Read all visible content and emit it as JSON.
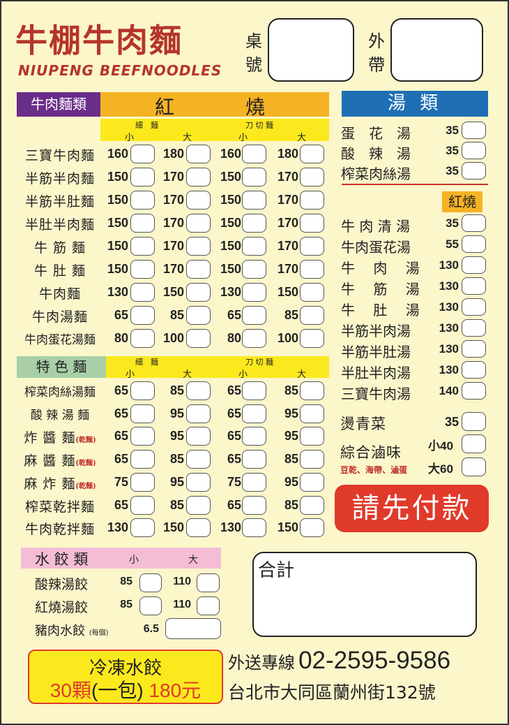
{
  "header": {
    "title": "牛棚牛肉麵",
    "subtitle": "NIUPENG BEEFNOODLES",
    "table_label": [
      "桌",
      "號"
    ],
    "takeout_label": [
      "外",
      "帶"
    ]
  },
  "colors": {
    "title_red": "#b5352a",
    "purple": "#6a2d8a",
    "orange": "#f5b324",
    "yellow": "#fbe91d",
    "green": "#a8cfa8",
    "blue": "#1f6fb5",
    "pink": "#f5bcd6",
    "pay_red": "#e03a2a"
  },
  "beef": {
    "label": "牛肉麵類",
    "hong": "紅",
    "shao": "燒",
    "thin": "細　麵",
    "knife": "刀 切 麵",
    "small": "小",
    "large": "大",
    "rows": [
      {
        "name": "三寶牛肉麵",
        "p": [
          "160",
          "180",
          "160",
          "180"
        ]
      },
      {
        "name": "半筋半肉麵",
        "p": [
          "150",
          "170",
          "150",
          "170"
        ]
      },
      {
        "name": "半筋半肚麵",
        "p": [
          "150",
          "170",
          "150",
          "170"
        ]
      },
      {
        "name": "半肚半肉麵",
        "p": [
          "150",
          "170",
          "150",
          "170"
        ]
      },
      {
        "name": "牛 筋 麵",
        "p": [
          "150",
          "170",
          "150",
          "170"
        ]
      },
      {
        "name": "牛 肚 麵",
        "p": [
          "150",
          "170",
          "150",
          "170"
        ]
      },
      {
        "name": "牛肉麵",
        "p": [
          "130",
          "150",
          "130",
          "150"
        ]
      },
      {
        "name": "牛肉湯麵",
        "p": [
          "65",
          "85",
          "65",
          "85"
        ]
      },
      {
        "name": "牛肉蛋花湯麵",
        "p": [
          "80",
          "100",
          "80",
          "100"
        ]
      }
    ]
  },
  "special": {
    "label": "特 色 麵",
    "thin": "細　麵",
    "knife": "刀 切 麵",
    "small": "小",
    "large": "大",
    "rows": [
      {
        "name": "榨菜肉絲湯麵",
        "note": "",
        "p": [
          "65",
          "85",
          "65",
          "85"
        ]
      },
      {
        "name": "酸 辣 湯 麵",
        "note": "",
        "p": [
          "65",
          "95",
          "65",
          "95"
        ]
      },
      {
        "name": "炸 醬 麵",
        "note": "(乾麵)",
        "p": [
          "65",
          "95",
          "65",
          "95"
        ]
      },
      {
        "name": "麻 醬 麵",
        "note": "(乾麵)",
        "p": [
          "65",
          "85",
          "65",
          "85"
        ]
      },
      {
        "name": "麻 炸 麵",
        "note": "(乾麵)",
        "p": [
          "75",
          "95",
          "75",
          "95"
        ]
      },
      {
        "name": "榨菜乾拌麵",
        "note": "",
        "p": [
          "65",
          "85",
          "65",
          "85"
        ]
      },
      {
        "name": "牛肉乾拌麵",
        "note": "",
        "p": [
          "130",
          "150",
          "130",
          "150"
        ]
      }
    ]
  },
  "soup": {
    "label": "湯 類",
    "rows": [
      {
        "name": "蛋　花　湯",
        "p": "35"
      },
      {
        "name": "酸　辣　湯",
        "p": "35"
      },
      {
        "name": "榨菜肉絲湯",
        "p": "35"
      }
    ],
    "braised_label": "紅燒",
    "braised": [
      {
        "name": "牛 肉 清 湯",
        "p": "35"
      },
      {
        "name": "牛肉蛋花湯",
        "p": "55"
      },
      {
        "name": "牛　 肉　 湯",
        "p": "130"
      },
      {
        "name": "牛　 筋　 湯",
        "p": "130"
      },
      {
        "name": "牛　 肚　 湯",
        "p": "130"
      },
      {
        "name": "半筋半肉湯",
        "p": "130"
      },
      {
        "name": "半筋半肚湯",
        "p": "130"
      },
      {
        "name": "半肚半肉湯",
        "p": "130"
      },
      {
        "name": "三寶牛肉湯",
        "p": "140"
      }
    ],
    "greens": {
      "name": "燙青菜",
      "p": "35"
    },
    "lumei": {
      "name": "綜合滷味",
      "note": "豆乾、海帶、滷蛋",
      "small": "小40",
      "large": "大60"
    }
  },
  "pay": "請先付款",
  "dumpling": {
    "label": "水 餃 類",
    "small": "小",
    "large": "大",
    "rows": [
      {
        "name": "酸辣湯餃",
        "p": [
          "85",
          "110"
        ]
      },
      {
        "name": "紅燒湯餃",
        "p": [
          "85",
          "110"
        ]
      }
    ],
    "pork": {
      "name": "豬肉水餃",
      "note": "(每個)",
      "p": "6.5"
    }
  },
  "total_label": "合計",
  "frozen": {
    "title": "冷凍水餃",
    "line_a": "30顆",
    "line_b": "(一包)",
    "line_c": "180元"
  },
  "contact": {
    "label": "外送專線",
    "phone": "02-2595-9586",
    "address": "台北市大同區蘭州街132號"
  }
}
